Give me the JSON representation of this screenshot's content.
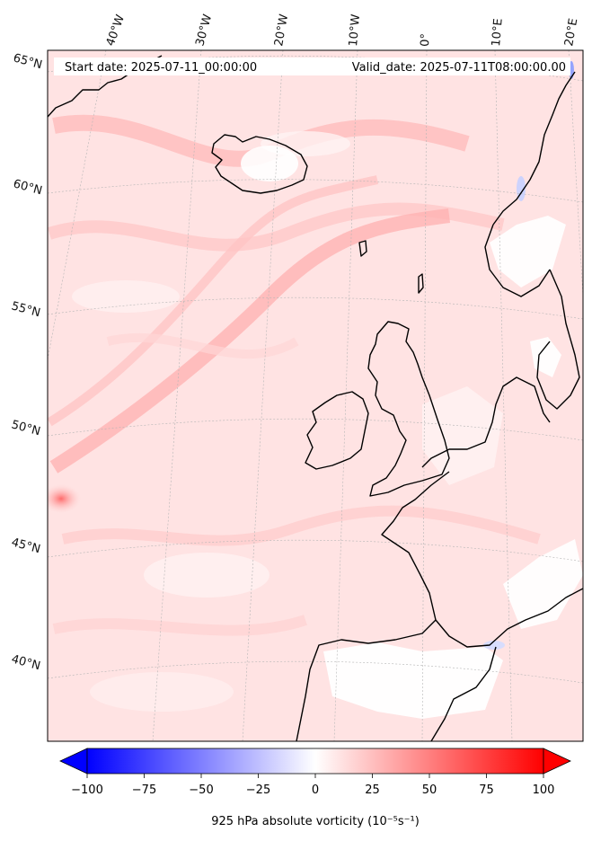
{
  "map": {
    "start_date": "Start date: 2025-07-11_00:00:00",
    "valid_date": "Valid_date: 2025-07-11T08:00:00.00",
    "lon_labels": [
      "40°W",
      "30°W",
      "20°W",
      "10°W",
      "0°",
      "10°E",
      "20°E"
    ],
    "lat_labels": [
      "65°N",
      "60°N",
      "55°N",
      "50°N",
      "45°N",
      "40°N"
    ],
    "projection": "conic",
    "field": "925 hPa absolute vorticity",
    "field_colormap": "bwr",
    "field_range": [
      -100,
      100
    ]
  },
  "colorbar": {
    "label": "925 hPa absolute vorticity (10⁻⁵s⁻¹)",
    "ticks": [
      "−100",
      "−75",
      "−50",
      "−25",
      "0",
      "25",
      "50",
      "75",
      "100"
    ],
    "tick_values": [
      -100,
      -75,
      -50,
      -25,
      0,
      25,
      50,
      75,
      100
    ],
    "extend": "both",
    "colors": {
      "min": "#0000ff",
      "mid": "#ffffff",
      "max": "#ff0000"
    }
  }
}
